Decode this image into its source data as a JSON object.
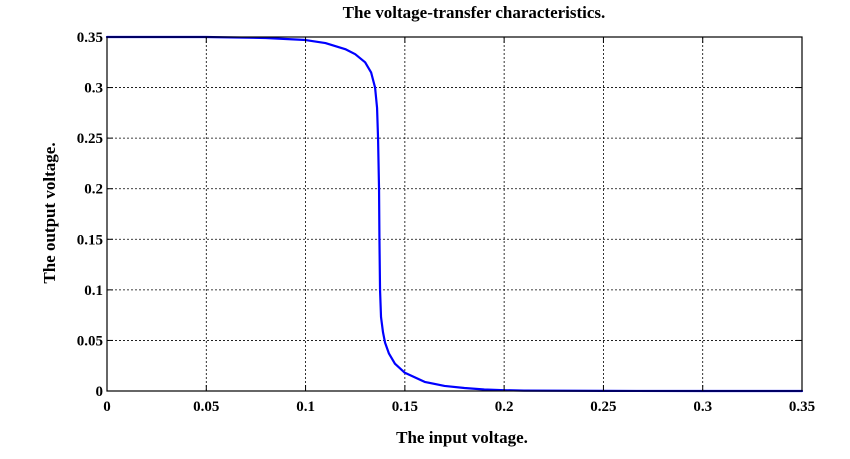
{
  "chart_data": {
    "type": "line",
    "title": "The voltage-transfer characteristics.",
    "xlabel": "The input voltage.",
    "ylabel": "The output voltage.",
    "xlim": [
      0,
      0.35
    ],
    "ylim": [
      0,
      0.35
    ],
    "x_ticks": [
      0,
      0.05,
      0.1,
      0.15,
      0.2,
      0.25,
      0.3,
      0.35
    ],
    "x_tick_labels": [
      "0",
      "0.05",
      "0.1",
      "0.15",
      "0.2",
      "0.25",
      "0.3",
      "0.35"
    ],
    "y_ticks": [
      0,
      0.05,
      0.1,
      0.15,
      0.2,
      0.25,
      0.3,
      0.35
    ],
    "y_tick_labels": [
      "0",
      "0.05",
      "0.1",
      "0.15",
      "0.2",
      "0.25",
      "0.3",
      "0.35"
    ],
    "grid": true,
    "series": [
      {
        "color": "#0000ff",
        "x": [
          0,
          0.05,
          0.08,
          0.1,
          0.11,
          0.12,
          0.125,
          0.13,
          0.133,
          0.135,
          0.136,
          0.1365,
          0.137,
          0.1372,
          0.1375,
          0.138,
          0.139,
          0.14,
          0.142,
          0.145,
          0.15,
          0.16,
          0.17,
          0.18,
          0.19,
          0.2,
          0.21,
          0.25,
          0.3,
          0.35
        ],
        "y": [
          0.35,
          0.35,
          0.349,
          0.347,
          0.344,
          0.338,
          0.333,
          0.325,
          0.315,
          0.3,
          0.28,
          0.25,
          0.2,
          0.15,
          0.1,
          0.073,
          0.058,
          0.048,
          0.037,
          0.027,
          0.018,
          0.009,
          0.005,
          0.003,
          0.0015,
          0.0008,
          0.0004,
          0.0001,
          0,
          0
        ]
      }
    ]
  }
}
